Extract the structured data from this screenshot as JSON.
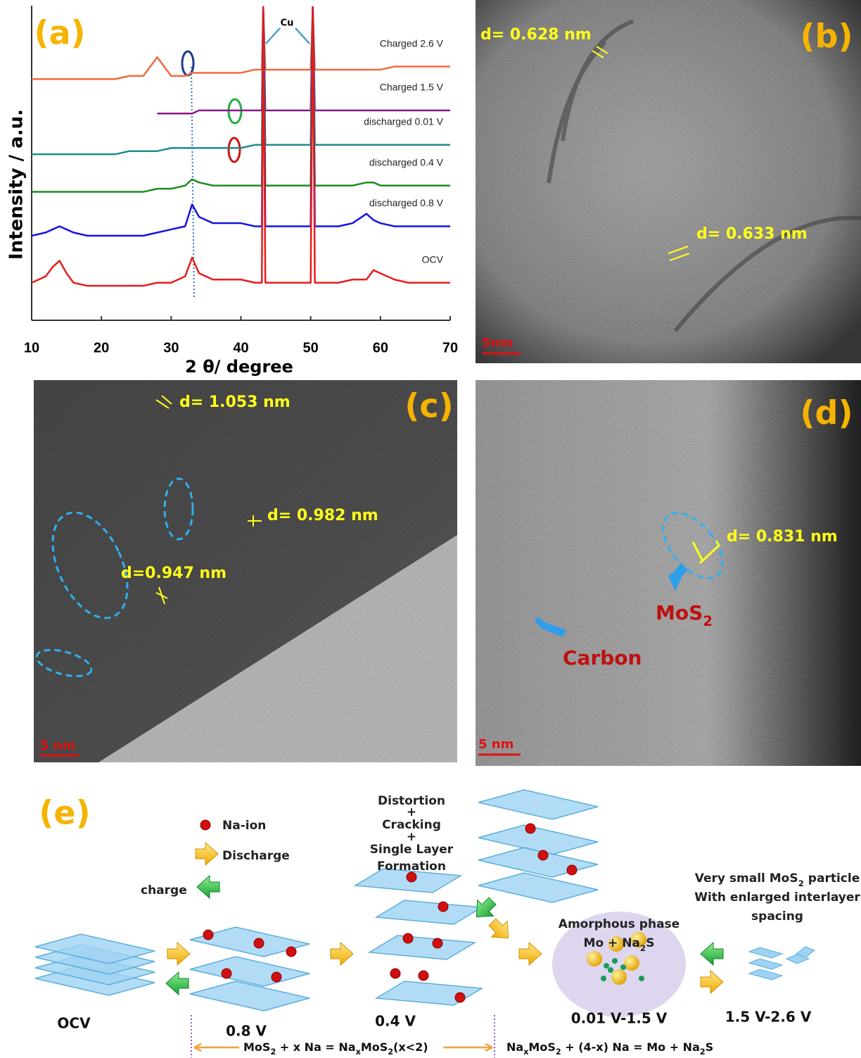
{
  "chart_data": {
    "type": "line",
    "panel_label": "(a)",
    "x_label": "2 θ/ degree",
    "y_label": "Intensity / a.u.",
    "annotation": "Cu",
    "xlim": [
      10,
      70
    ],
    "xticks": [
      10,
      20,
      30,
      40,
      50,
      60,
      70
    ],
    "ylim": [
      0,
      100
    ],
    "x": [
      10,
      12,
      13,
      14,
      15,
      16,
      18,
      20,
      22,
      24,
      26,
      28,
      30,
      32,
      33,
      34,
      36,
      38,
      40,
      42,
      43,
      43.2,
      43.5,
      46,
      48,
      50,
      50.3,
      50.6,
      52,
      54,
      56,
      58,
      59,
      60,
      62,
      64,
      66,
      68,
      70
    ],
    "series": [
      {
        "name": "Charged 2.6 V",
        "color": "#f26a3d",
        "values": [
          77,
          77,
          77,
          77,
          77,
          77,
          77,
          77,
          77,
          78,
          78,
          84,
          78,
          78,
          79,
          79,
          79,
          79,
          79,
          80,
          80,
          100,
          80,
          80,
          80,
          80,
          100,
          80,
          80,
          80,
          80,
          80,
          80,
          80,
          81,
          81,
          81,
          81,
          81
        ]
      },
      {
        "name": "Charged 1.5 V",
        "color": "#8b1a8b",
        "values": [
          null,
          null,
          null,
          null,
          null,
          null,
          null,
          null,
          null,
          null,
          null,
          66,
          66,
          66,
          66,
          67,
          67,
          67,
          67,
          67,
          67,
          100,
          67,
          67,
          67,
          67,
          100,
          67,
          67,
          67,
          67,
          67,
          67,
          67,
          67,
          67,
          67,
          67,
          67
        ]
      },
      {
        "name": "discharged 0.01 V",
        "color": "#1e8c8c",
        "values": [
          53,
          53,
          53,
          53,
          53,
          53,
          53,
          53,
          53,
          54,
          54,
          54,
          55,
          55,
          55,
          55,
          55,
          55,
          55,
          56,
          56,
          100,
          56,
          56,
          56,
          56,
          100,
          56,
          56,
          56,
          56,
          56,
          56,
          56,
          56,
          56,
          56,
          56,
          56
        ]
      },
      {
        "name": "discharged 0.4 V",
        "color": "#1e8c1e",
        "values": [
          41,
          41,
          41,
          41,
          41,
          41,
          41,
          41,
          41,
          41,
          41,
          42,
          42,
          43,
          45,
          44,
          43,
          43,
          43,
          43,
          43,
          100,
          43,
          43,
          43,
          43,
          100,
          43,
          43,
          43,
          43,
          44,
          44,
          43,
          43,
          43,
          43,
          43,
          43
        ]
      },
      {
        "name": "discharged 0.8 V",
        "color": "#1414e0",
        "values": [
          27,
          28,
          29,
          30,
          29,
          28,
          27,
          27,
          27,
          27,
          27,
          28,
          29,
          30,
          37,
          33,
          31,
          31,
          31,
          30,
          30,
          100,
          30,
          30,
          30,
          30,
          100,
          30,
          30,
          30,
          31,
          34,
          32,
          31,
          30,
          30,
          30,
          30,
          30
        ]
      },
      {
        "name": "OCV",
        "color": "#e81c1c",
        "values": [
          12,
          14,
          17,
          19,
          15,
          12,
          11,
          11,
          11,
          11,
          11,
          12,
          12,
          14,
          20,
          15,
          13,
          13,
          13,
          12,
          12,
          100,
          12,
          12,
          12,
          12,
          100,
          12,
          12,
          12,
          13,
          13,
          16,
          15,
          13,
          12,
          12,
          12,
          12
        ]
      }
    ]
  },
  "panel_b": {
    "label": "(b)",
    "spacings": [
      "d= 0.628 nm",
      "d= 0.633 nm"
    ],
    "scale_bar": "5nm"
  },
  "panel_c": {
    "label": "(c)",
    "spacings": [
      "d= 1.053 nm",
      "d= 0.982 nm",
      "d=0.947 nm"
    ],
    "scale_bar": "5 nm"
  },
  "panel_d": {
    "label": "(d)",
    "spacings": [
      "d= 0.831 nm"
    ],
    "mos2": [
      "MoS",
      "2"
    ],
    "carbon": "Carbon",
    "scale_bar": "5 nm"
  },
  "schematic": {
    "label": "(e)",
    "legend_na": "Na-ion",
    "discharge": "Discharge",
    "charge": "charge",
    "process": [
      "Distortion",
      "+",
      "Cracking",
      "+",
      "Single  Layer",
      "Formation"
    ],
    "amorphous": "Amorphous phase",
    "amorphous_formula": [
      "Mo + Na",
      "2",
      "S"
    ],
    "small_particle": [
      "Very small MoS",
      "2",
      " particle"
    ],
    "enlarged": "With enlarged interlayer",
    "spacing": "spacing",
    "stages": [
      "OCV",
      "0.8 V",
      "0.4 V",
      "0.01 V-1.5 V",
      "1.5 V-2.6 V"
    ],
    "equation_1": [
      "MoS",
      "2",
      " + x Na = Na",
      "x",
      "MoS",
      "2",
      "(x<2)"
    ],
    "equation_2": [
      "Na",
      "x",
      "MoS",
      "2",
      " + (4-x) Na = Mo + Na",
      "2",
      "S"
    ]
  }
}
